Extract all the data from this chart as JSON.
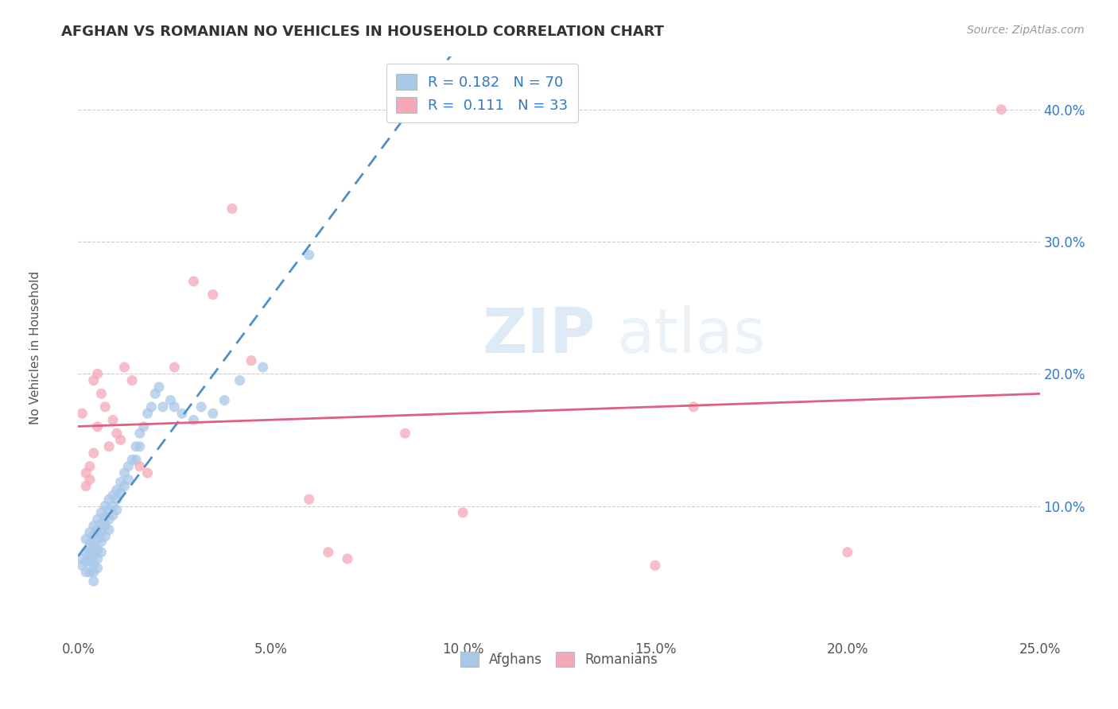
{
  "title": "AFGHAN VS ROMANIAN NO VEHICLES IN HOUSEHOLD CORRELATION CHART",
  "source": "Source: ZipAtlas.com",
  "ylabel": "No Vehicles in Household",
  "xlim": [
    0.0,
    0.25
  ],
  "ylim": [
    0.0,
    0.44
  ],
  "xtick_labels": [
    "0.0%",
    "5.0%",
    "10.0%",
    "15.0%",
    "20.0%",
    "25.0%"
  ],
  "xtick_vals": [
    0.0,
    0.05,
    0.1,
    0.15,
    0.2,
    0.25
  ],
  "ytick_labels": [
    "10.0%",
    "20.0%",
    "30.0%",
    "40.0%"
  ],
  "ytick_vals": [
    0.1,
    0.2,
    0.3,
    0.4
  ],
  "afghan_color": "#a8c8e8",
  "romanian_color": "#f4a8b8",
  "afghan_line_color": "#5090c8",
  "romanian_line_color": "#e06080",
  "legend_text_color": "#3378c8",
  "afghan_R": 0.182,
  "afghan_N": 70,
  "romanian_R": 0.111,
  "romanian_N": 33,
  "watermark_zip": "ZIP",
  "watermark_atlas": "atlas",
  "afghans_scatter_x": [
    0.001,
    0.001,
    0.002,
    0.002,
    0.002,
    0.002,
    0.003,
    0.003,
    0.003,
    0.003,
    0.003,
    0.004,
    0.004,
    0.004,
    0.004,
    0.004,
    0.004,
    0.004,
    0.005,
    0.005,
    0.005,
    0.005,
    0.005,
    0.005,
    0.006,
    0.006,
    0.006,
    0.006,
    0.006,
    0.007,
    0.007,
    0.007,
    0.007,
    0.008,
    0.008,
    0.008,
    0.008,
    0.009,
    0.009,
    0.009,
    0.01,
    0.01,
    0.01,
    0.011,
    0.011,
    0.012,
    0.012,
    0.013,
    0.013,
    0.014,
    0.015,
    0.015,
    0.016,
    0.016,
    0.017,
    0.018,
    0.019,
    0.02,
    0.021,
    0.022,
    0.024,
    0.025,
    0.027,
    0.03,
    0.032,
    0.035,
    0.038,
    0.042,
    0.048,
    0.06
  ],
  "afghans_scatter_y": [
    0.06,
    0.055,
    0.075,
    0.065,
    0.058,
    0.05,
    0.08,
    0.072,
    0.065,
    0.058,
    0.05,
    0.085,
    0.078,
    0.07,
    0.063,
    0.056,
    0.05,
    0.043,
    0.09,
    0.082,
    0.075,
    0.067,
    0.06,
    0.053,
    0.095,
    0.087,
    0.08,
    0.073,
    0.065,
    0.1,
    0.092,
    0.085,
    0.077,
    0.105,
    0.097,
    0.09,
    0.082,
    0.108,
    0.1,
    0.093,
    0.112,
    0.105,
    0.097,
    0.118,
    0.11,
    0.125,
    0.115,
    0.13,
    0.12,
    0.135,
    0.145,
    0.135,
    0.155,
    0.145,
    0.16,
    0.17,
    0.175,
    0.185,
    0.19,
    0.175,
    0.18,
    0.175,
    0.17,
    0.165,
    0.175,
    0.17,
    0.18,
    0.195,
    0.205,
    0.29
  ],
  "romanians_scatter_x": [
    0.001,
    0.002,
    0.002,
    0.003,
    0.003,
    0.004,
    0.004,
    0.005,
    0.005,
    0.006,
    0.007,
    0.008,
    0.009,
    0.01,
    0.011,
    0.012,
    0.014,
    0.016,
    0.018,
    0.025,
    0.03,
    0.035,
    0.04,
    0.045,
    0.06,
    0.065,
    0.07,
    0.085,
    0.1,
    0.15,
    0.16,
    0.2,
    0.24
  ],
  "romanians_scatter_y": [
    0.17,
    0.125,
    0.115,
    0.13,
    0.12,
    0.195,
    0.14,
    0.2,
    0.16,
    0.185,
    0.175,
    0.145,
    0.165,
    0.155,
    0.15,
    0.205,
    0.195,
    0.13,
    0.125,
    0.205,
    0.27,
    0.26,
    0.325,
    0.21,
    0.105,
    0.065,
    0.06,
    0.155,
    0.095,
    0.055,
    0.175,
    0.065,
    0.4
  ]
}
